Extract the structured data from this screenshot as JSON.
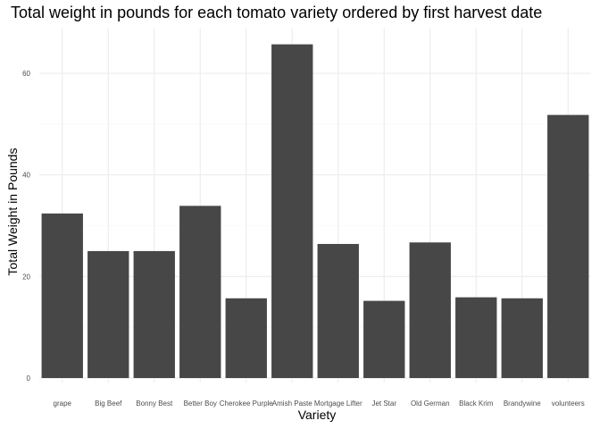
{
  "chart_data": {
    "type": "bar",
    "title": "Total weight in pounds for each tomato variety ordered by first harvest date",
    "xlabel": "Variety",
    "ylabel": "Total Weight in Pounds",
    "categories": [
      "grape",
      "Big Beef",
      "Bonny Best",
      "Better Boy",
      "Cherokee Purple",
      "Amish Paste",
      "Mortgage Lifter",
      "Jet Star",
      "Old German",
      "Black Krim",
      "Brandywine",
      "volunteers"
    ],
    "values": [
      32.4,
      25.0,
      25.0,
      33.9,
      15.7,
      65.7,
      26.4,
      15.2,
      26.7,
      15.9,
      15.7,
      51.8
    ],
    "yticks": [
      0,
      20,
      40,
      60
    ],
    "ylim": [
      0,
      69
    ],
    "grid": true,
    "colors": {
      "bar": "#474747",
      "grid_major": "#ebebeb",
      "grid_minor": "#f5f5f5",
      "tick_text": "#4d4d4d"
    }
  }
}
